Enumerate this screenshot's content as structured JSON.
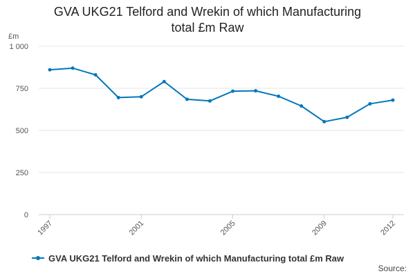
{
  "chart_data": {
    "type": "line",
    "title_lines": [
      "GVA UKG21 Telford and Wrekin of which Manufacturing",
      "total £m Raw"
    ],
    "ylabel": "£m",
    "x": [
      1997,
      1998,
      1999,
      2000,
      2001,
      2002,
      2003,
      2004,
      2005,
      2006,
      2007,
      2008,
      2009,
      2010,
      2011,
      2012
    ],
    "x_tick_values": [
      1997,
      2001,
      2005,
      2009,
      2012
    ],
    "x_tick_labels": [
      "1997",
      "2001",
      "2005",
      "2009",
      "2012"
    ],
    "ylim": [
      0,
      1000
    ],
    "y_ticks": [
      0,
      250,
      500,
      750,
      1000
    ],
    "y_tick_labels": [
      "0",
      "250",
      "500",
      "750",
      "1 000"
    ],
    "series": [
      {
        "name": "GVA UKG21 Telford and Wrekin of which Manufacturing total £m Raw",
        "color": "#0077bb",
        "values": [
          860,
          870,
          830,
          695,
          700,
          790,
          685,
          675,
          733,
          735,
          703,
          645,
          552,
          578,
          658,
          680
        ]
      }
    ],
    "grid": true,
    "legend_position": "bottom-left"
  },
  "source_label": "Source:"
}
